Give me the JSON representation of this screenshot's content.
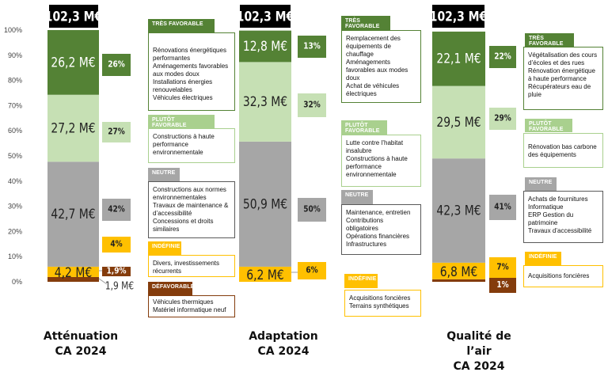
{
  "chart_data": {
    "type": "bar",
    "stacked": true,
    "ylim": [
      0,
      100
    ],
    "yticks": [
      "0%",
      "10%",
      "20%",
      "30%",
      "40%",
      "50%",
      "60%",
      "70%",
      "80%",
      "90%",
      "100%"
    ],
    "grid": false,
    "colors": {
      "tres_favorable": "#548235",
      "plutot_favorable": "#c6e0b4",
      "neutre": "#a6a6a6",
      "indefinie": "#ffc000",
      "defavorable": "#843c0c"
    },
    "columns": [
      {
        "title_lines": [
          "Atténuation",
          "CA 2024"
        ],
        "total_label": "102,3 M€",
        "segments": [
          {
            "class": "defavorable",
            "share": 1.9,
            "value_label": "1,9 M€",
            "pct_label": "1,9%"
          },
          {
            "class": "indefinie",
            "share": 4.1,
            "value_label": "4,2 M€",
            "pct_label": "4%"
          },
          {
            "class": "neutre",
            "share": 41.7,
            "value_label": "42,7 M€",
            "pct_label": "42%"
          },
          {
            "class": "plutot_favorable",
            "share": 26.6,
            "value_label": "27,2 M€",
            "pct_label": "27%"
          },
          {
            "class": "tres_favorable",
            "share": 25.7,
            "value_label": "26,2 M€",
            "pct_label": "26%"
          }
        ]
      },
      {
        "title_lines": [
          "Adaptation",
          "CA 2024"
        ],
        "total_label": "102,3 M€",
        "segments": [
          {
            "class": "indefinie",
            "share": 6.0,
            "value_label": "6,2 M€",
            "pct_label": "6%"
          },
          {
            "class": "neutre",
            "share": 49.7,
            "value_label": "50,9 M€",
            "pct_label": "50%"
          },
          {
            "class": "plutot_favorable",
            "share": 31.6,
            "value_label": "32,3 M€",
            "pct_label": "32%"
          },
          {
            "class": "tres_favorable",
            "share": 12.5,
            "value_label": "12,8 M€",
            "pct_label": "13%"
          }
        ]
      },
      {
        "title_lines": [
          "Qualité de",
          "l’air",
          "CA 2024"
        ],
        "total_label": "102,3 M€",
        "segments": [
          {
            "class": "defavorable",
            "share": 1.0,
            "value_label": "",
            "pct_label": "1%"
          },
          {
            "class": "indefinie",
            "share": 6.6,
            "value_label": "6,8 M€",
            "pct_label": "7%"
          },
          {
            "class": "neutre",
            "share": 41.4,
            "value_label": "42,3 M€",
            "pct_label": "41%"
          },
          {
            "class": "plutot_favorable",
            "share": 28.8,
            "value_label": "29,5 M€",
            "pct_label": "29%"
          },
          {
            "class": "tres_favorable",
            "share": 21.6,
            "value_label": "22,1 M€",
            "pct_label": "22%"
          }
        ]
      }
    ]
  },
  "legend_boxes": {
    "attenuation": {
      "tres_favorable": {
        "tag": "TRÈS FAVORABLE",
        "lines": [
          "Rénovations énergétiques performantes",
          "Aménagements favorables aux modes doux",
          "Installations énergies renouvelables",
          "Véhicules électriques"
        ]
      },
      "plutot_favorable": {
        "tag": "PLUTÔT FAVORABLE",
        "lines": [
          "Constructions à haute performance environnementale"
        ]
      },
      "neutre": {
        "tag": "NEUTRE",
        "lines": [
          "Constructions aux normes environnementales",
          "Travaux de maintenance & d’accessibilité",
          "Concessions et droits similaires"
        ]
      },
      "indefinie": {
        "tag": "INDÉFINIE",
        "lines": [
          "Divers, investissements récurrents"
        ]
      },
      "defavorable": {
        "tag": "DÉFAVORABLE",
        "lines": [
          "Véhicules thermiques",
          "Matériel informatique neuf"
        ]
      }
    },
    "adaptation": {
      "tres_favorable": {
        "tag": "TRÈS FAVORABLE",
        "lines": [
          "Remplacement des équipements de chauffage",
          "Aménagements favorables aux modes doux",
          "Achat de véhicules électriques"
        ]
      },
      "plutot_favorable": {
        "tag": "PLUTÔT FAVORABLE",
        "lines": [
          "Lutte contre l’habitat insalubre",
          "Constructions à haute performance environnementale"
        ]
      },
      "neutre": {
        "tag": "NEUTRE",
        "lines": [
          "Maintenance, entretien",
          "Contributions obligatoires",
          "Opérations financières",
          "Infrastructures"
        ]
      },
      "indefinie": {
        "tag": "INDÉFINIE",
        "lines": [
          "Acquisitions foncières",
          "Terrains synthétiques"
        ]
      }
    },
    "qualite_air": {
      "tres_favorable": {
        "tag": "TRÈS FAVORABLE",
        "lines": [
          "Végétalisation des cours d’écoles et des rues",
          "Rénovation énergétique à haute performance",
          "Récupérateurs eau de pluie"
        ]
      },
      "plutot_favorable": {
        "tag": "PLUTÔT FAVORABLE",
        "lines": [
          "Rénovation bas carbone des équipements"
        ]
      },
      "neutre": {
        "tag": "NEUTRE",
        "lines": [
          "Achats de fournitures",
          "Informatique",
          "ERP Gestion du patrimoine",
          "Travaux d’accessibilité"
        ]
      },
      "indefinie": {
        "tag": "INDÉFINIE",
        "lines": [
          "Acquisitions foncières"
        ]
      }
    }
  }
}
